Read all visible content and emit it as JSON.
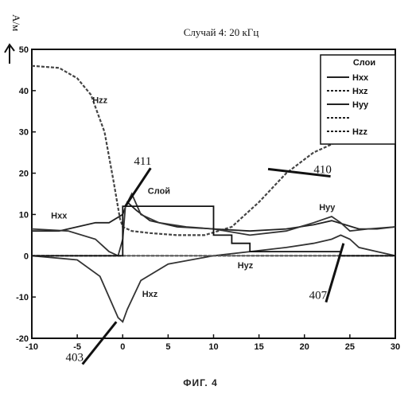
{
  "title": "Случай 4: 20 кГц",
  "ylabel": "А/м",
  "figure_caption": "ФИГ. 4",
  "chart_data": {
    "type": "line",
    "title": "Случай 4: 20 кГц",
    "xlabel": "",
    "ylabel": "А/м",
    "xlim": [
      -10,
      30
    ],
    "ylim": [
      -20,
      50
    ],
    "xticks": [
      "-10",
      "-5",
      "0",
      "5",
      "10",
      "15",
      "20",
      "25",
      "30"
    ],
    "yticks": [
      "50",
      "40",
      "30",
      "20",
      "10",
      "0",
      "-10",
      "-20"
    ],
    "grid": false,
    "legend": {
      "title": "Слои",
      "placement": "top-right",
      "entries": [
        "Hxx",
        "Hxz",
        "Hyy",
        "",
        "Hzz"
      ]
    },
    "series": [
      {
        "name": "Hzz",
        "style": "dashed",
        "x": [
          -10,
          -7,
          -5,
          -3.5,
          -2,
          -1,
          -0.3,
          0,
          1,
          3,
          6,
          9,
          12,
          15,
          18,
          21,
          24,
          27,
          28.5
        ],
        "y": [
          46,
          45.5,
          43,
          39,
          30,
          18,
          9,
          7,
          6,
          5.5,
          5,
          5,
          7,
          13,
          20,
          25,
          28,
          30,
          31
        ]
      },
      {
        "name": "Hxx",
        "style": "solid",
        "x": [
          -10,
          -7,
          -5,
          -3,
          -1.5,
          0,
          0.5,
          1.5,
          3,
          6,
          10,
          14,
          18,
          21,
          23,
          24.5,
          26,
          28,
          30
        ],
        "y": [
          6,
          6,
          7,
          8,
          8,
          10,
          13,
          11,
          8.5,
          7,
          6.5,
          6,
          6.5,
          7.5,
          8.5,
          7.5,
          6.5,
          6.5,
          7
        ]
      },
      {
        "name": "Hyy",
        "style": "solid",
        "x": [
          -10,
          -6,
          -3,
          -1.5,
          -0.5,
          0,
          0.3,
          1,
          2,
          4,
          7,
          10,
          14,
          18,
          21,
          23,
          24,
          25,
          27,
          30
        ],
        "y": [
          6.5,
          6,
          4,
          1,
          0,
          4,
          12,
          15,
          10,
          8,
          7,
          6.5,
          5,
          6,
          8,
          9.5,
          8,
          6,
          6.5,
          7
        ]
      },
      {
        "name": "Hxz",
        "style": "solid",
        "x": [
          -10,
          -5,
          -2.5,
          -1.5,
          -0.5,
          0,
          0.5,
          2,
          5,
          10,
          14,
          18,
          21,
          23,
          24,
          25,
          26,
          28,
          30
        ],
        "y": [
          0,
          -1,
          -5,
          -10,
          -15,
          -16,
          -13,
          -6,
          -2,
          0,
          1,
          2,
          3,
          4,
          5,
          4,
          2,
          1,
          0
        ]
      },
      {
        "name": "Hyz",
        "style": "dashed",
        "x": [
          -10,
          -5,
          0,
          5,
          10,
          15,
          20,
          25,
          30
        ],
        "y": [
          0,
          0,
          0,
          0,
          0,
          0,
          0,
          0,
          0
        ]
      },
      {
        "name": "Слой",
        "style": "step",
        "x": [
          -10,
          0,
          0,
          10,
          10,
          12,
          12,
          14,
          14,
          24,
          24,
          30
        ],
        "y": [
          0,
          0,
          12,
          12,
          5,
          5,
          3,
          3,
          1,
          1,
          0,
          0
        ]
      }
    ],
    "annotations": [
      {
        "text": "Hzz",
        "x": -2.5,
        "y": 37
      },
      {
        "text": "Hxx",
        "x": -7,
        "y": 9
      },
      {
        "text": "Hxz",
        "x": 3,
        "y": -10
      },
      {
        "text": "Hyy",
        "x": 22.5,
        "y": 11
      },
      {
        "text": "Hyz",
        "x": 13.5,
        "y": -3
      },
      {
        "text": "Слой",
        "x": 4,
        "y": 15
      },
      {
        "text": "411",
        "x": 2.2,
        "y": 22,
        "arrow_to": [
          0.3,
          12
        ],
        "kind": "ref"
      },
      {
        "text": "410",
        "x": 22,
        "y": 20,
        "arrow_to": [
          16,
          21
        ],
        "kind": "ref"
      },
      {
        "text": "407",
        "x": 21.5,
        "y": -10.5,
        "arrow_to": [
          24.3,
          3
        ],
        "kind": "ref"
      },
      {
        "text": "403",
        "x": -5.3,
        "y": -25.5,
        "arrow_to": [
          -0.7,
          -16
        ],
        "kind": "ref"
      }
    ]
  }
}
